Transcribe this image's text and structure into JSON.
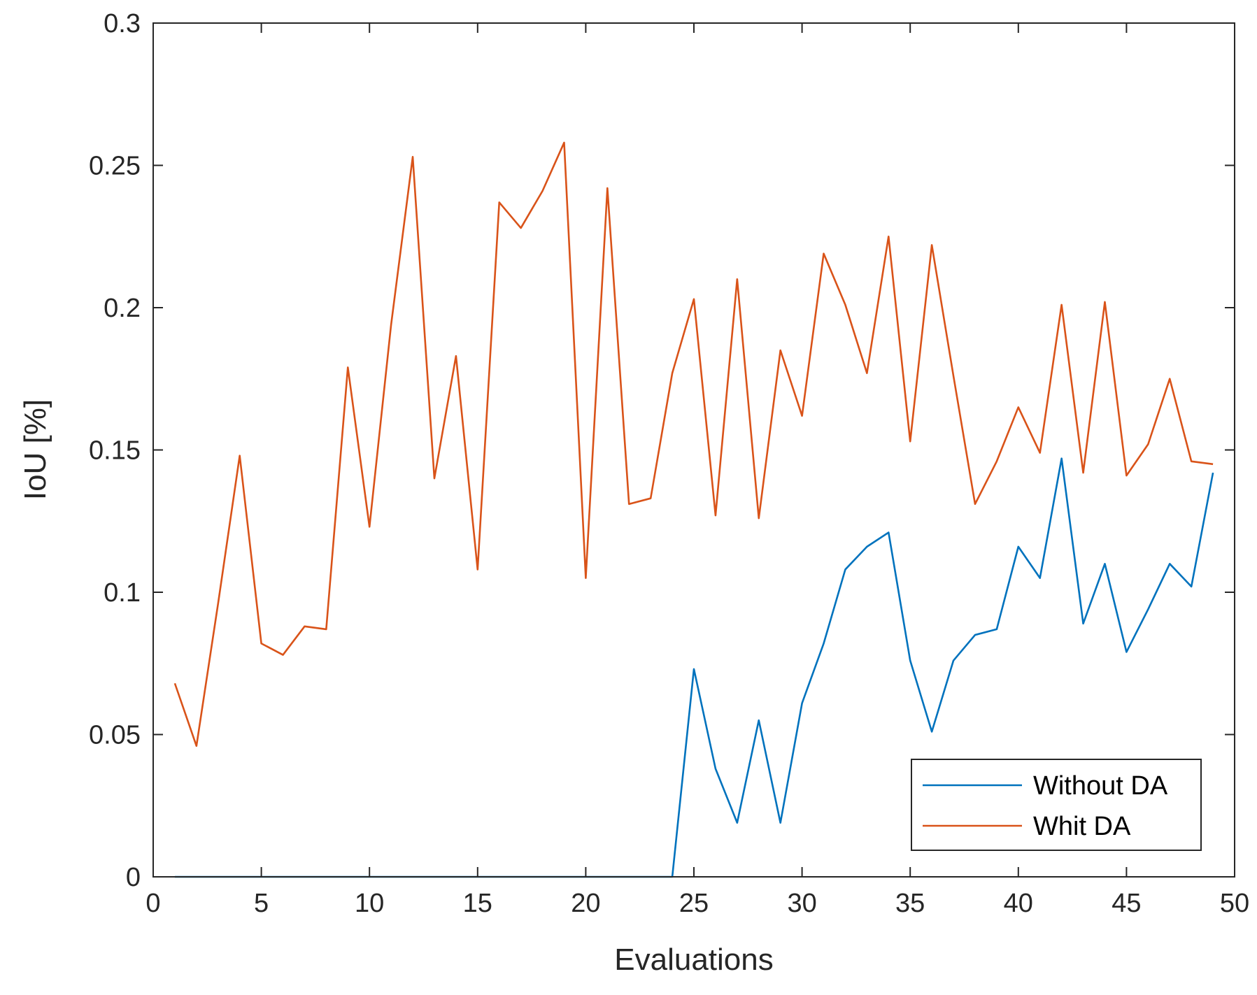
{
  "chart_data": {
    "type": "line",
    "xlabel": "Evaluations",
    "ylabel": "IoU [%]",
    "xlim": [
      0,
      50
    ],
    "ylim": [
      0,
      0.3
    ],
    "xticks": [
      0,
      5,
      10,
      15,
      20,
      25,
      30,
      35,
      40,
      45,
      50
    ],
    "yticks": [
      0,
      0.05,
      0.1,
      0.15,
      0.2,
      0.25,
      0.3
    ],
    "xtick_labels": [
      "0",
      "5",
      "10",
      "15",
      "20",
      "25",
      "30",
      "35",
      "40",
      "45",
      "50"
    ],
    "ytick_labels": [
      "0",
      "0.05",
      "0.1",
      "0.15",
      "0.2",
      "0.25",
      "0.3"
    ],
    "grid": false,
    "legend_position": "bottom-right",
    "x": [
      1,
      2,
      3,
      4,
      5,
      6,
      7,
      8,
      9,
      10,
      11,
      12,
      13,
      14,
      15,
      16,
      17,
      18,
      19,
      20,
      21,
      22,
      23,
      24,
      25,
      26,
      27,
      28,
      29,
      30,
      31,
      32,
      33,
      34,
      35,
      36,
      37,
      38,
      39,
      40,
      41,
      42,
      43,
      44,
      45,
      46,
      47,
      48,
      49
    ],
    "series": [
      {
        "name": "Without DA",
        "color": "#0072BD",
        "values": [
          0,
          0,
          0,
          0,
          0,
          0,
          0,
          0,
          0,
          0,
          0,
          0,
          0,
          0,
          0,
          0,
          0,
          0,
          0,
          0,
          0,
          0,
          0,
          0,
          0.073,
          0.038,
          0.019,
          0.055,
          0.019,
          0.061,
          0.082,
          0.108,
          0.116,
          0.121,
          0.076,
          0.051,
          0.076,
          0.085,
          0.087,
          0.116,
          0.105,
          0.147,
          0.089,
          0.11,
          0.079,
          0.094,
          0.11,
          0.102,
          0.142
        ]
      },
      {
        "name": "Whit DA",
        "color": "#D95319",
        "values": [
          0.068,
          0.046,
          0.096,
          0.148,
          0.082,
          0.078,
          0.088,
          0.087,
          0.179,
          0.123,
          0.194,
          0.253,
          0.14,
          0.183,
          0.108,
          0.237,
          0.228,
          0.241,
          0.258,
          0.105,
          0.242,
          0.131,
          0.133,
          0.177,
          0.203,
          0.127,
          0.21,
          0.126,
          0.185,
          0.162,
          0.219,
          0.201,
          0.177,
          0.225,
          0.153,
          0.222,
          0.176,
          0.131,
          0.146,
          0.165,
          0.149,
          0.201,
          0.142,
          0.202,
          0.141,
          0.152,
          0.175,
          0.146,
          0.145
        ]
      }
    ]
  }
}
